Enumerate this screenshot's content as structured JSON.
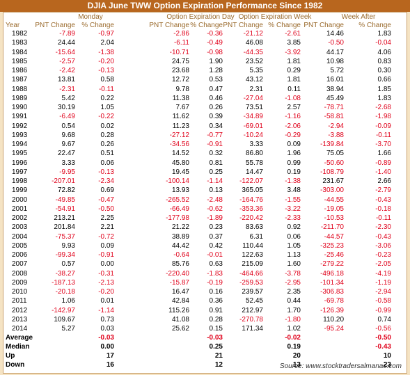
{
  "title": "DJIA June TWW Option Expiration Performance Since 1982",
  "table": {
    "group_headers": [
      "Monday",
      "Option Expiration Day",
      "Option Expiration Week",
      "Week After"
    ],
    "column_headers": [
      "Year",
      "PNT Change",
      "% Change",
      "PNT Change",
      "% Change",
      "PNT Change",
      "% Change",
      "PNT Change",
      "% Change"
    ],
    "rows": [
      [
        "1982",
        "-7.89",
        "-0.97",
        "-2.86",
        "-0.36",
        "-21.12",
        "-2.61",
        "14.46",
        "1.83"
      ],
      [
        "1983",
        "24.44",
        "2.04",
        "-6.11",
        "-0.49",
        "46.08",
        "3.85",
        "-0.50",
        "-0.04"
      ],
      [
        "1984",
        "-15.64",
        "-1.38",
        "-10.71",
        "-0.98",
        "-44.35",
        "-3.92",
        "44.17",
        "4.06"
      ],
      [
        "1985",
        "-2.57",
        "-0.20",
        "24.75",
        "1.90",
        "23.52",
        "1.81",
        "10.98",
        "0.83"
      ],
      [
        "1986",
        "-2.42",
        "-0.13",
        "23.68",
        "1.28",
        "5.35",
        "0.29",
        "5.72",
        "0.30"
      ],
      [
        "1987",
        "13.81",
        "0.58",
        "12.72",
        "0.53",
        "43.12",
        "1.81",
        "16.01",
        "0.66"
      ],
      [
        "1988",
        "-2.31",
        "-0.11",
        "9.78",
        "0.47",
        "2.31",
        "0.11",
        "38.94",
        "1.85"
      ],
      [
        "1989",
        "5.42",
        "0.22",
        "11.38",
        "0.46",
        "-27.04",
        "-1.08",
        "45.49",
        "1.83"
      ],
      [
        "1990",
        "30.19",
        "1.05",
        "7.67",
        "0.26",
        "73.51",
        "2.57",
        "-78.71",
        "-2.68"
      ],
      [
        "1991",
        "-6.49",
        "-0.22",
        "11.62",
        "0.39",
        "-34.89",
        "-1.16",
        "-58.81",
        "-1.98"
      ],
      [
        "1992",
        "0.54",
        "0.02",
        "11.23",
        "0.34",
        "-69.01",
        "-2.06",
        "-2.94",
        "-0.09"
      ],
      [
        "1993",
        "9.68",
        "0.28",
        "-27.12",
        "-0.77",
        "-10.24",
        "-0.29",
        "-3.88",
        "-0.11"
      ],
      [
        "1994",
        "9.67",
        "0.26",
        "-34.56",
        "-0.91",
        "3.33",
        "0.09",
        "-139.84",
        "-3.70"
      ],
      [
        "1995",
        "22.47",
        "0.51",
        "14.52",
        "0.32",
        "86.80",
        "1.96",
        "75.05",
        "1.66"
      ],
      [
        "1996",
        "3.33",
        "0.06",
        "45.80",
        "0.81",
        "55.78",
        "0.99",
        "-50.60",
        "-0.89"
      ],
      [
        "1997",
        "-9.95",
        "-0.13",
        "19.45",
        "0.25",
        "14.47",
        "0.19",
        "-108.79",
        "-1.40"
      ],
      [
        "1998",
        "-207.01",
        "-2.34",
        "-100.14",
        "-1.14",
        "-122.07",
        "-1.38",
        "231.67",
        "2.66"
      ],
      [
        "1999",
        "72.82",
        "0.69",
        "13.93",
        "0.13",
        "365.05",
        "3.48",
        "-303.00",
        "-2.79"
      ],
      [
        "2000",
        "-49.85",
        "-0.47",
        "-265.52",
        "-2.48",
        "-164.76",
        "-1.55",
        "-44.55",
        "-0.43"
      ],
      [
        "2001",
        "-54.91",
        "-0.50",
        "-66.49",
        "-0.62",
        "-353.36",
        "-3.22",
        "-19.05",
        "-0.18"
      ],
      [
        "2002",
        "213.21",
        "2.25",
        "-177.98",
        "-1.89",
        "-220.42",
        "-2.33",
        "-10.53",
        "-0.11"
      ],
      [
        "2003",
        "201.84",
        "2.21",
        "21.22",
        "0.23",
        "83.63",
        "0.92",
        "-211.70",
        "-2.30"
      ],
      [
        "2004",
        "-75.37",
        "-0.72",
        "38.89",
        "0.37",
        "6.31",
        "0.06",
        "-44.57",
        "-0.43"
      ],
      [
        "2005",
        "9.93",
        "0.09",
        "44.42",
        "0.42",
        "110.44",
        "1.05",
        "-325.23",
        "-3.06"
      ],
      [
        "2006",
        "-99.34",
        "-0.91",
        "-0.64",
        "-0.01",
        "122.63",
        "1.13",
        "-25.46",
        "-0.23"
      ],
      [
        "2007",
        "0.57",
        "0.00",
        "85.76",
        "0.63",
        "215.09",
        "1.60",
        "-279.22",
        "-2.05"
      ],
      [
        "2008",
        "-38.27",
        "-0.31",
        "-220.40",
        "-1.83",
        "-464.66",
        "-3.78",
        "-496.18",
        "-4.19"
      ],
      [
        "2009",
        "-187.13",
        "-2.13",
        "-15.87",
        "-0.19",
        "-259.53",
        "-2.95",
        "-101.34",
        "-1.19"
      ],
      [
        "2010",
        "-20.18",
        "-0.20",
        "16.47",
        "0.16",
        "239.57",
        "2.35",
        "-306.83",
        "-2.94"
      ],
      [
        "2011",
        "1.06",
        "0.01",
        "42.84",
        "0.36",
        "52.45",
        "0.44",
        "-69.78",
        "-0.58"
      ],
      [
        "2012",
        "-142.97",
        "-1.14",
        "115.26",
        "0.91",
        "212.97",
        "1.70",
        "-126.39",
        "-0.99"
      ],
      [
        "2013",
        "109.67",
        "0.73",
        "41.08",
        "0.28",
        "-270.78",
        "-1.80",
        "110.20",
        "0.74"
      ],
      [
        "2014",
        "5.27",
        "0.03",
        "25.62",
        "0.15",
        "171.34",
        "1.02",
        "-95.24",
        "-0.56"
      ]
    ],
    "summary": [
      {
        "label": "Average",
        "values": [
          "-0.03",
          "-0.03",
          "-0.02",
          "-0.50"
        ]
      },
      {
        "label": "Median",
        "values": [
          "0.00",
          "0.25",
          "0.19",
          "-0.43"
        ]
      },
      {
        "label": "Up",
        "values": [
          "17",
          "21",
          "20",
          "10"
        ]
      },
      {
        "label": "Down",
        "values": [
          "16",
          "12",
          "13",
          "23"
        ]
      }
    ]
  },
  "source": "Source: www.stocktradersalmanac.com"
}
